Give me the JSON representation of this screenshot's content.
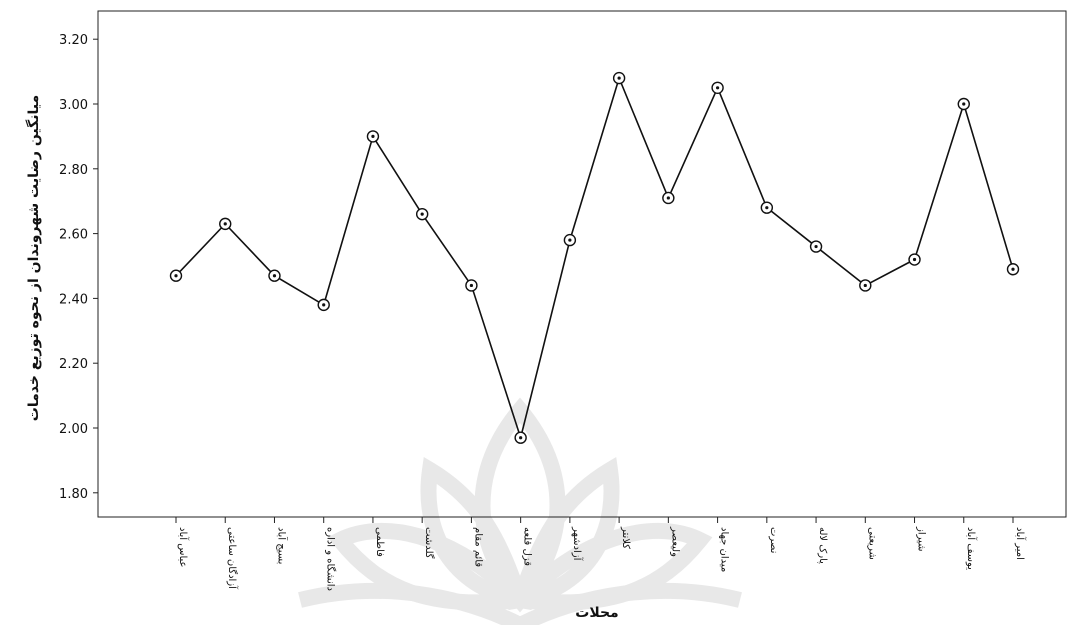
{
  "chart_data": {
    "type": "line",
    "title": "",
    "xlabel": "محلات",
    "ylabel": "میانگین رضایت شهروندان از نحوه توزیع خدمات",
    "ylim": [
      1.73,
      3.24
    ],
    "yticks": [
      "1.80",
      "2.00",
      "2.20",
      "2.40",
      "2.60",
      "2.80",
      "3.00",
      "3.20"
    ],
    "grid": false,
    "legend": "none",
    "line_color": "#111111",
    "categories": [
      "عباس آباد",
      "آزادگان ساعتی",
      "بسیج آباد",
      "دانشگاه و اداره",
      "فاطمی",
      "گلدشت",
      "قائم مقام",
      "قزل قلعه",
      "آزادشهر",
      "کلانتر",
      "ولیعصر",
      "میدان جهاد",
      "نصرت",
      "پارک لاله",
      "شریعتی",
      "شیراز",
      "یوسف آباد",
      "امیر آباد"
    ],
    "values": [
      2.47,
      2.63,
      2.47,
      2.38,
      2.9,
      2.66,
      2.44,
      1.97,
      2.58,
      3.08,
      2.71,
      3.05,
      2.68,
      2.56,
      2.44,
      2.52,
      3.0,
      2.49
    ]
  }
}
